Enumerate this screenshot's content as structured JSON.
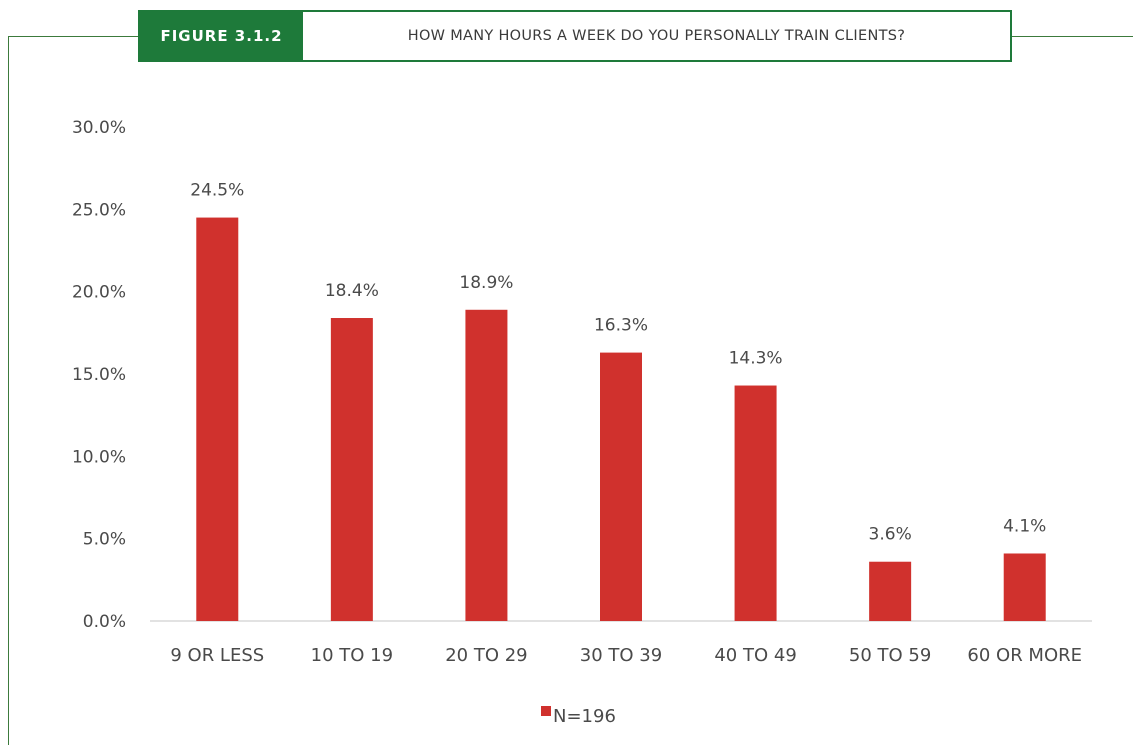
{
  "header": {
    "figure_label": "FIGURE 3.1.2",
    "title": "HOW MANY HOURS A WEEK DO YOU PERSONALLY TRAIN CLIENTS?"
  },
  "colors": {
    "bar": "#d0312d",
    "header_green": "#1e7a3a",
    "frame_line": "#3c7a3c",
    "axis": "#d9d9d9",
    "text": "#4a4a4a"
  },
  "chart_data": {
    "type": "bar",
    "categories": [
      "9 OR LESS",
      "10 TO 19",
      "20 TO 29",
      "30 TO 39",
      "40 TO 49",
      "50 TO 59",
      "60 OR MORE"
    ],
    "series": [
      {
        "name": "N=196",
        "values": [
          24.5,
          18.4,
          18.9,
          16.3,
          14.3,
          3.6,
          4.1
        ]
      }
    ],
    "value_labels": [
      "24.5%",
      "18.4%",
      "18.9%",
      "16.3%",
      "14.3%",
      "3.6%",
      "4.1%"
    ],
    "y_ticks": [
      0,
      5,
      10,
      15,
      20,
      25,
      30
    ],
    "y_tick_labels": [
      "0.0%",
      "5.0%",
      "10.0%",
      "15.0%",
      "20.0%",
      "25.0%",
      "30.0%"
    ],
    "ylim": [
      0,
      30
    ],
    "grid": false,
    "legend_position": "bottom-center",
    "title": "HOW MANY HOURS A WEEK DO YOU PERSONALLY TRAIN CLIENTS?",
    "xlabel": "",
    "ylabel": ""
  }
}
